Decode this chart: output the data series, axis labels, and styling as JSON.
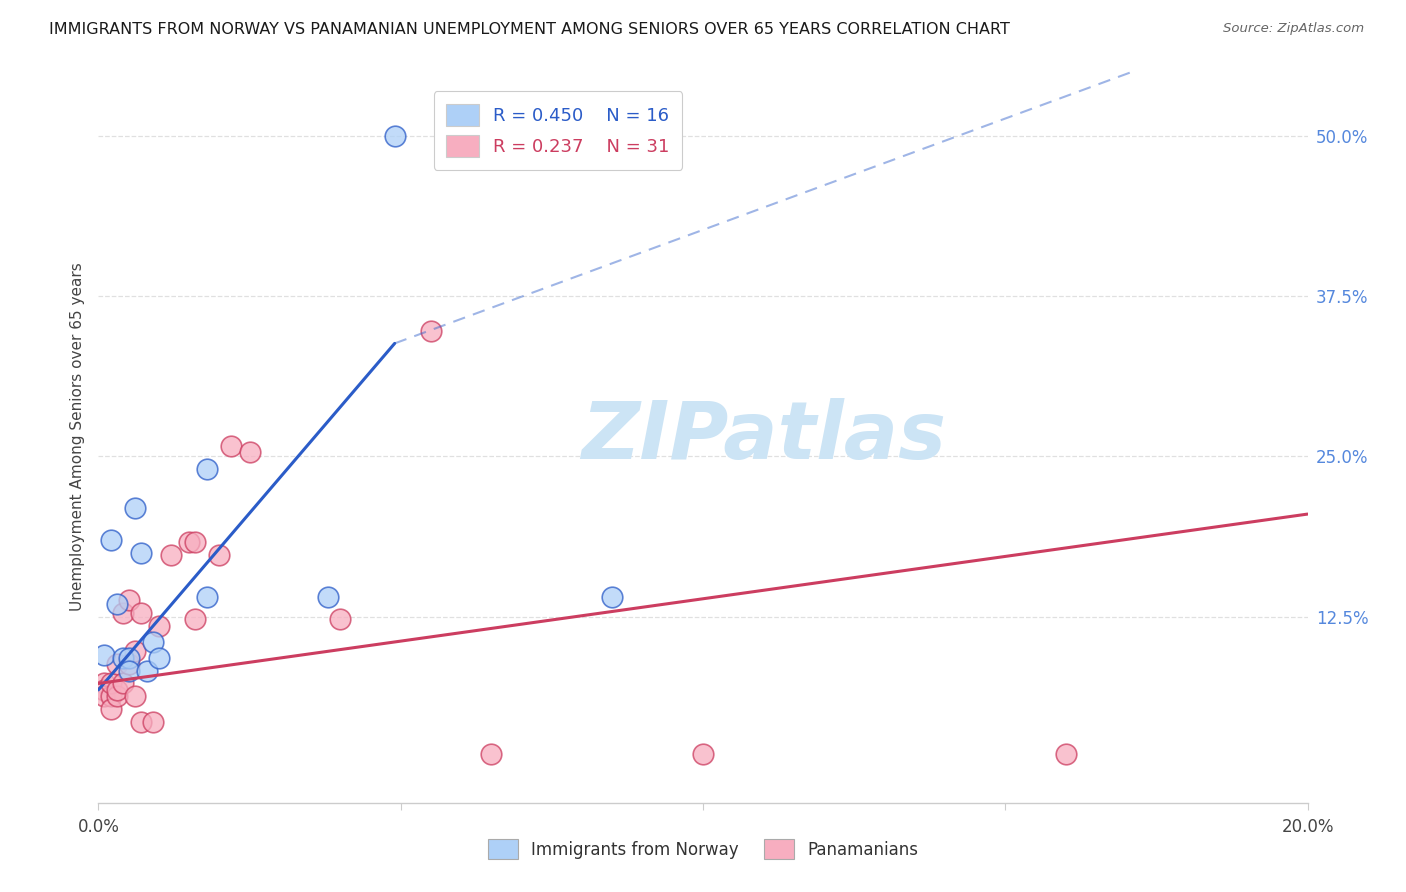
{
  "title": "IMMIGRANTS FROM NORWAY VS PANAMANIAN UNEMPLOYMENT AMONG SENIORS OVER 65 YEARS CORRELATION CHART",
  "source": "Source: ZipAtlas.com",
  "ylabel": "Unemployment Among Seniors over 65 years",
  "xlim": [
    0.0,
    0.2
  ],
  "ylim": [
    -0.02,
    0.55
  ],
  "xtick_vals": [
    0.0,
    0.05,
    0.1,
    0.15,
    0.2
  ],
  "xtick_labels": [
    "0.0%",
    "",
    "",
    "",
    "20.0%"
  ],
  "ytick_labels_right": [
    "50.0%",
    "37.5%",
    "25.0%",
    "12.5%"
  ],
  "ytick_vals_right": [
    0.5,
    0.375,
    0.25,
    0.125
  ],
  "legend_r1": "R = 0.450",
  "legend_n1": "N = 16",
  "legend_r2": "R = 0.237",
  "legend_n2": "N = 31",
  "norway_color": "#aed0f7",
  "panama_color": "#f7aec0",
  "norway_line_color": "#2b5cc8",
  "panama_line_color": "#cc3d60",
  "norway_scatter": [
    [
      0.001,
      0.095
    ],
    [
      0.002,
      0.185
    ],
    [
      0.003,
      0.135
    ],
    [
      0.004,
      0.093
    ],
    [
      0.005,
      0.093
    ],
    [
      0.005,
      0.083
    ],
    [
      0.006,
      0.21
    ],
    [
      0.007,
      0.175
    ],
    [
      0.008,
      0.083
    ],
    [
      0.009,
      0.105
    ],
    [
      0.01,
      0.093
    ],
    [
      0.018,
      0.24
    ],
    [
      0.018,
      0.14
    ],
    [
      0.038,
      0.14
    ],
    [
      0.049,
      0.5
    ],
    [
      0.085,
      0.14
    ]
  ],
  "panama_scatter": [
    [
      0.001,
      0.073
    ],
    [
      0.001,
      0.068
    ],
    [
      0.001,
      0.063
    ],
    [
      0.002,
      0.063
    ],
    [
      0.002,
      0.053
    ],
    [
      0.002,
      0.073
    ],
    [
      0.003,
      0.088
    ],
    [
      0.003,
      0.063
    ],
    [
      0.003,
      0.068
    ],
    [
      0.004,
      0.073
    ],
    [
      0.004,
      0.128
    ],
    [
      0.005,
      0.138
    ],
    [
      0.005,
      0.088
    ],
    [
      0.006,
      0.098
    ],
    [
      0.006,
      0.063
    ],
    [
      0.007,
      0.128
    ],
    [
      0.007,
      0.043
    ],
    [
      0.009,
      0.043
    ],
    [
      0.01,
      0.118
    ],
    [
      0.012,
      0.173
    ],
    [
      0.015,
      0.183
    ],
    [
      0.016,
      0.183
    ],
    [
      0.016,
      0.123
    ],
    [
      0.02,
      0.173
    ],
    [
      0.022,
      0.258
    ],
    [
      0.025,
      0.253
    ],
    [
      0.04,
      0.123
    ],
    [
      0.055,
      0.348
    ],
    [
      0.065,
      0.018
    ],
    [
      0.1,
      0.018
    ],
    [
      0.16,
      0.018
    ]
  ],
  "background_color": "#ffffff",
  "watermark_text": "ZIPatlas",
  "watermark_color": "#cce4f5",
  "grid_color": "#e0e0e0",
  "norway_trendline_solid": [
    [
      0.0,
      0.068
    ],
    [
      0.049,
      0.338
    ]
  ],
  "norway_trendline_dashed": [
    [
      0.049,
      0.338
    ],
    [
      0.2,
      0.6
    ]
  ],
  "panama_trendline": [
    [
      0.0,
      0.073
    ],
    [
      0.2,
      0.205
    ]
  ]
}
